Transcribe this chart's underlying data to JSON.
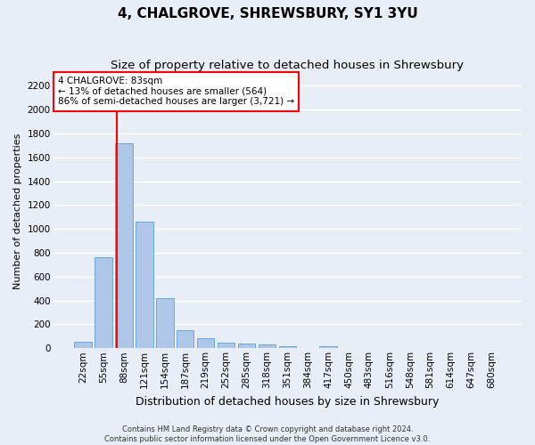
{
  "title": "4, CHALGROVE, SHREWSBURY, SY1 3YU",
  "subtitle": "Size of property relative to detached houses in Shrewsbury",
  "xlabel": "Distribution of detached houses by size in Shrewsbury",
  "ylabel": "Number of detached properties",
  "footer_line1": "Contains HM Land Registry data © Crown copyright and database right 2024.",
  "footer_line2": "Contains public sector information licensed under the Open Government Licence v3.0.",
  "bin_labels": [
    "22sqm",
    "55sqm",
    "88sqm",
    "121sqm",
    "154sqm",
    "187sqm",
    "219sqm",
    "252sqm",
    "285sqm",
    "318sqm",
    "351sqm",
    "384sqm",
    "417sqm",
    "450sqm",
    "483sqm",
    "516sqm",
    "548sqm",
    "581sqm",
    "614sqm",
    "647sqm",
    "680sqm"
  ],
  "bar_heights": [
    55,
    760,
    1720,
    1060,
    420,
    150,
    85,
    50,
    40,
    30,
    20,
    0,
    20,
    0,
    0,
    0,
    0,
    0,
    0,
    0,
    0
  ],
  "bar_color": "#aec6e8",
  "bar_edge_color": "#5a9fd4",
  "vline_color": "red",
  "vline_pos": 1.65,
  "annotation_text": "4 CHALGROVE: 83sqm\n← 13% of detached houses are smaller (564)\n86% of semi-detached houses are larger (3,721) →",
  "annotation_box_color": "white",
  "annotation_box_edge_color": "red",
  "ylim": [
    0,
    2300
  ],
  "yticks": [
    0,
    200,
    400,
    600,
    800,
    1000,
    1200,
    1400,
    1600,
    1800,
    2000,
    2200
  ],
  "background_color": "#e8eef5",
  "grid_color": "white",
  "title_fontsize": 11,
  "subtitle_fontsize": 9.5,
  "xlabel_fontsize": 9,
  "ylabel_fontsize": 8,
  "tick_fontsize": 7.5,
  "annotation_fontsize": 7.5,
  "footer_fontsize": 6
}
